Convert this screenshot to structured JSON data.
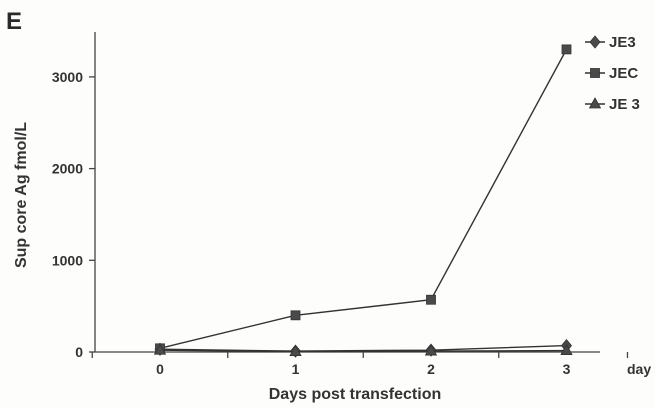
{
  "panel_label": "E",
  "chart_data": {
    "type": "line",
    "title": "",
    "xlabel": "Days post transfection",
    "ylabel": "Sup core Ag fmol/L",
    "x_unit_label": "day",
    "x": [
      0,
      1,
      2,
      3
    ],
    "x_tick_labels": [
      "0",
      "1",
      "2",
      "3"
    ],
    "y_tick_labels": [
      "0",
      "1000",
      "2000",
      "3000"
    ],
    "y_ticks": [
      0,
      1000,
      2000,
      3000
    ],
    "xlim": [
      -0.5,
      3.2
    ],
    "ylim": [
      0,
      3500
    ],
    "grid": false,
    "legend_position": "top-right",
    "series": [
      {
        "name": "JE3",
        "marker": "diamond",
        "values": [
          30,
          10,
          20,
          70
        ]
      },
      {
        "name": "JEC",
        "marker": "square",
        "values": [
          40,
          400,
          570,
          3300
        ]
      },
      {
        "name": "JE 3",
        "marker": "triangle",
        "values": [
          20,
          5,
          10,
          15
        ]
      }
    ]
  },
  "colors": {
    "line": "#333333",
    "marker": "#4a4a4a",
    "axis": "#444444"
  }
}
